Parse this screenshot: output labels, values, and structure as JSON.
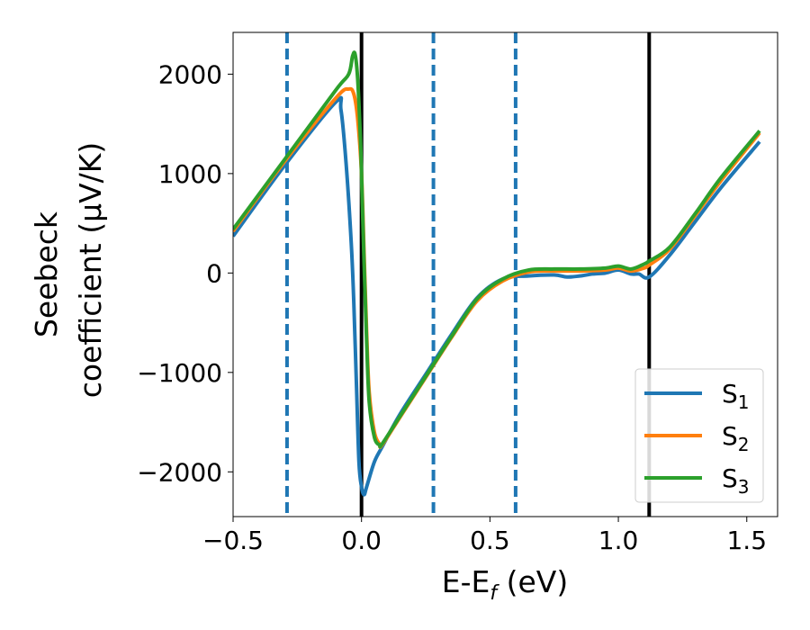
{
  "chart_data": {
    "type": "line",
    "xlabel": "E-E",
    "xlabel_sub": "f",
    "xlabel_unit": " (eV)",
    "ylabel_line1": "Seebeck",
    "ylabel_line2": "coefficient  (μV/K)",
    "xlim": [
      -0.5,
      1.62
    ],
    "ylim": [
      -2450,
      2420
    ],
    "xticks": [
      -0.5,
      0.0,
      0.5,
      1.0,
      1.5
    ],
    "xtick_labels": [
      "−0.5",
      "0.0",
      "0.5",
      "1.0",
      "1.5"
    ],
    "yticks": [
      -2000,
      -1000,
      0,
      1000,
      2000
    ],
    "ytick_labels": [
      "−2000",
      "−1000",
      "0",
      "1000",
      "2000"
    ],
    "grid": false,
    "legend_position": "bottom-right",
    "vlines": [
      {
        "x": -0.29,
        "style": "dashed",
        "color": "#1f77b4"
      },
      {
        "x": 0.0,
        "style": "solid",
        "color": "#000000"
      },
      {
        "x": 0.28,
        "style": "dashed",
        "color": "#1f77b4"
      },
      {
        "x": 0.6,
        "style": "dashed",
        "color": "#1f77b4"
      },
      {
        "x": 1.12,
        "style": "solid",
        "color": "#000000"
      }
    ],
    "series": [
      {
        "name": "S",
        "sub": "1",
        "color": "#1f77b4",
        "x": [
          -0.5,
          -0.3,
          -0.1,
          -0.08,
          -0.06,
          -0.04,
          -0.03,
          -0.02,
          -0.01,
          0.0,
          0.01,
          0.02,
          0.05,
          0.08,
          0.15,
          0.25,
          0.35,
          0.45,
          0.55,
          0.65,
          0.75,
          0.8,
          0.85,
          0.9,
          0.95,
          1.0,
          1.05,
          1.08,
          1.12,
          1.2,
          1.3,
          1.4,
          1.55
        ],
        "y": [
          370,
          1080,
          1720,
          1640,
          1100,
          300,
          -300,
          -1100,
          -1900,
          -2150,
          -2230,
          -2150,
          -1900,
          -1750,
          -1420,
          -1020,
          -620,
          -250,
          -60,
          -30,
          -20,
          -40,
          -30,
          -10,
          0,
          30,
          -10,
          -10,
          -40,
          180,
          520,
          860,
          1320
        ]
      },
      {
        "name": "S",
        "sub": "2",
        "color": "#ff7f0e",
        "x": [
          -0.5,
          -0.3,
          -0.1,
          -0.05,
          -0.03,
          -0.015,
          0.0,
          0.01,
          0.02,
          0.03,
          0.05,
          0.07,
          0.08,
          0.15,
          0.25,
          0.35,
          0.45,
          0.55,
          0.65,
          0.75,
          0.85,
          0.95,
          1.0,
          1.05,
          1.1,
          1.12,
          1.2,
          1.3,
          1.4,
          1.55
        ],
        "y": [
          420,
          1120,
          1760,
          1850,
          1800,
          1550,
          1000,
          200,
          -600,
          -1200,
          -1600,
          -1720,
          -1730,
          -1450,
          -1050,
          -650,
          -280,
          -80,
          10,
          20,
          20,
          30,
          50,
          20,
          50,
          80,
          240,
          580,
          930,
          1410
        ]
      },
      {
        "name": "S",
        "sub": "3",
        "color": "#2ca02c",
        "x": [
          -0.5,
          -0.3,
          -0.1,
          -0.05,
          -0.035,
          -0.025,
          -0.015,
          -0.005,
          0.0,
          0.01,
          0.02,
          0.03,
          0.05,
          0.07,
          0.08,
          0.15,
          0.25,
          0.35,
          0.45,
          0.55,
          0.65,
          0.75,
          0.85,
          0.95,
          1.0,
          1.05,
          1.1,
          1.12,
          1.2,
          1.3,
          1.4,
          1.55
        ],
        "y": [
          440,
          1140,
          1840,
          2000,
          2180,
          2200,
          1950,
          1400,
          1000,
          100,
          -700,
          -1300,
          -1650,
          -1730,
          -1720,
          -1440,
          -1040,
          -640,
          -260,
          -60,
          30,
          40,
          40,
          50,
          70,
          40,
          90,
          120,
          260,
          600,
          960,
          1430
        ]
      }
    ]
  }
}
